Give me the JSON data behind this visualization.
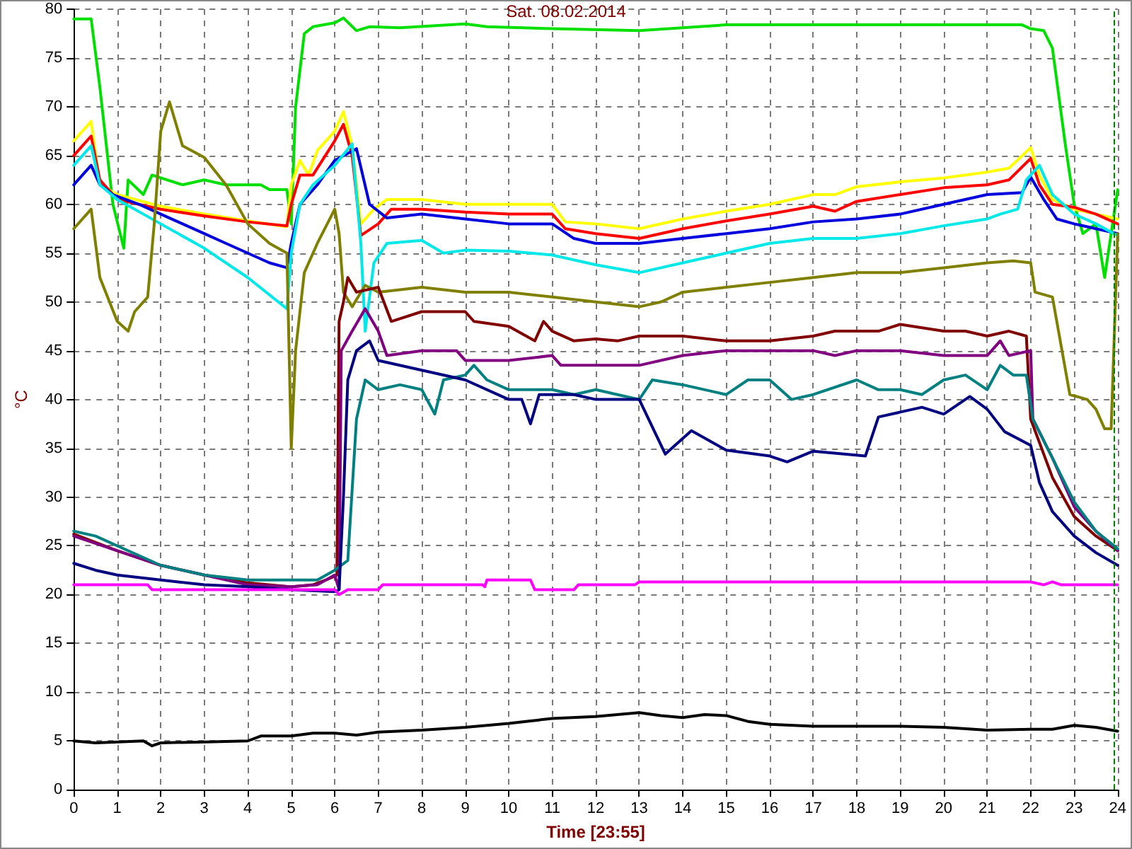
{
  "chart_data": {
    "type": "line",
    "title": "Sat. 08.02.2014",
    "xlabel": "Time [23:55]",
    "ylabel": "°C",
    "xlim": [
      0,
      24
    ],
    "xticks": [
      0,
      1,
      2,
      3,
      4,
      5,
      6,
      7,
      8,
      9,
      10,
      11,
      12,
      13,
      14,
      15,
      16,
      17,
      18,
      19,
      20,
      21,
      22,
      23,
      24
    ],
    "ylim": [
      0,
      80
    ],
    "yticks": [
      0,
      5,
      10,
      15,
      20,
      25,
      30,
      35,
      40,
      45,
      50,
      55,
      60,
      65,
      70,
      75,
      80
    ],
    "grid": true,
    "marker": "none",
    "line_style": "solid",
    "ref_lines": [
      {
        "axis": "x",
        "value": 23.92,
        "color": "#008000",
        "line_style": "dashed"
      }
    ],
    "series": [
      {
        "color": "#00e000",
        "x": [
          0,
          0.4,
          0.6,
          0.9,
          1.15,
          1.25,
          1.6,
          1.8,
          2.5,
          3,
          3.5,
          4.3,
          4.5,
          4.9,
          5.0,
          5.1,
          5.3,
          5.5,
          6.0,
          6.2,
          6.5,
          6.8,
          7.5,
          9,
          9.5,
          11,
          13,
          15,
          17,
          19,
          21,
          21.8,
          22.0,
          22.3,
          22.5,
          22.8,
          23.0,
          23.2,
          23.5,
          23.7,
          24
        ],
        "values": [
          79,
          79,
          72,
          60,
          55.5,
          62.5,
          61,
          63,
          62,
          62.5,
          62,
          62,
          61.5,
          61.5,
          58,
          70,
          77.5,
          78.2,
          78.6,
          79.1,
          77.8,
          78.2,
          78.1,
          78.5,
          78.2,
          78,
          77.8,
          78.4,
          78.4,
          78.4,
          78.4,
          78.4,
          78,
          77.8,
          76,
          66,
          60,
          57,
          58,
          52.5,
          61.5
        ]
      },
      {
        "color": "#ffff00",
        "x": [
          0,
          0.4,
          0.6,
          1,
          2,
          3,
          4,
          4.9,
          5.0,
          5.2,
          5.4,
          5.6,
          6,
          6.2,
          6.4,
          6.6,
          6.9,
          7.2,
          8,
          9,
          10,
          11,
          11.3,
          12,
          13,
          14,
          15,
          16,
          17,
          17.5,
          18,
          19,
          20,
          21,
          21.5,
          22,
          22.2,
          22.5,
          23,
          23.5,
          24
        ],
        "values": [
          66.5,
          68.5,
          62,
          61,
          59.8,
          59,
          58.3,
          57.7,
          62,
          64.5,
          63,
          65.5,
          67.5,
          69.5,
          66,
          58,
          59.5,
          60.5,
          60.5,
          60,
          60,
          60,
          58.2,
          58,
          57.5,
          58.5,
          59.3,
          60,
          61,
          61,
          61.8,
          62.3,
          62.7,
          63.3,
          63.7,
          65.8,
          63,
          60.5,
          59.5,
          59,
          58.5
        ]
      },
      {
        "color": "#ff0000",
        "x": [
          0,
          0.4,
          0.6,
          1,
          2,
          3,
          4,
          4.9,
          5.0,
          5.2,
          5.5,
          6,
          6.2,
          6.4,
          6.6,
          7,
          7.3,
          8,
          9,
          10,
          11,
          11.3,
          12,
          13,
          14,
          15,
          16,
          17,
          17.5,
          18,
          19,
          20,
          21,
          21.5,
          22,
          22.2,
          22.5,
          23,
          23.5,
          24
        ],
        "values": [
          65,
          67,
          62.5,
          60.5,
          59.5,
          58.8,
          58.2,
          57.8,
          60,
          63,
          63,
          66.5,
          68.2,
          65,
          56.8,
          58,
          59.5,
          59.5,
          59.2,
          59,
          59,
          57.5,
          57,
          56.5,
          57.5,
          58.3,
          59,
          59.8,
          59.3,
          60.3,
          61,
          61.7,
          62,
          62.5,
          64.7,
          62,
          60,
          59.7,
          59,
          58
        ]
      },
      {
        "color": "#0000dd",
        "x": [
          0,
          0.4,
          0.6,
          0.9,
          1.5,
          2,
          2.5,
          3,
          3.5,
          4,
          4.5,
          4.9,
          5.0,
          5.2,
          5.6,
          6.0,
          6.5,
          6.8,
          7.2,
          8,
          9,
          10,
          11,
          11.5,
          12,
          13,
          14,
          15,
          16,
          17,
          18,
          19,
          20,
          21,
          21.8,
          22,
          22.3,
          22.6,
          23,
          23.5,
          24
        ],
        "values": [
          62,
          64,
          62,
          61,
          60,
          59,
          58,
          57,
          56,
          55,
          54,
          53.5,
          56,
          60,
          62,
          64.5,
          65.7,
          60,
          58.6,
          59,
          58.5,
          58,
          58,
          56.5,
          56,
          56,
          56.5,
          57,
          57.5,
          58.2,
          58.5,
          59,
          60,
          61,
          61.2,
          62.8,
          60.5,
          58.5,
          58,
          57.5,
          57
        ]
      },
      {
        "color": "#00e8e8",
        "x": [
          0,
          0.4,
          0.6,
          1,
          2,
          3,
          4,
          4.9,
          5.0,
          5.2,
          5.5,
          6.0,
          6.4,
          6.6,
          6.7,
          6.9,
          7.2,
          8,
          8.5,
          9,
          10,
          11,
          12,
          13,
          14,
          15,
          16,
          17,
          18,
          19,
          20,
          21,
          21.3,
          21.7,
          21.9,
          22.2,
          22.5,
          23,
          23.5,
          24
        ],
        "values": [
          64,
          66,
          62,
          60.5,
          58,
          55.5,
          52.5,
          49.3,
          55,
          60,
          62,
          64,
          66.2,
          56,
          47,
          54,
          56,
          56.3,
          55,
          55.3,
          55.2,
          54.8,
          53.8,
          53,
          54,
          55,
          56,
          56.5,
          56.5,
          57,
          57.8,
          58.5,
          59,
          59.5,
          62.5,
          64,
          61,
          59,
          58,
          56.8
        ]
      },
      {
        "color": "#808000",
        "x": [
          0,
          0.4,
          0.6,
          1,
          1.25,
          1.4,
          1.7,
          1.85,
          2.0,
          2.2,
          2.5,
          3,
          3.5,
          4,
          4.5,
          4.9,
          5.0,
          5.1,
          5.3,
          5.6,
          6.0,
          6.1,
          6.2,
          6.4,
          6.7,
          7,
          8,
          9,
          10,
          11,
          12,
          13,
          13.5,
          14,
          15,
          16,
          17,
          18,
          19,
          20,
          21,
          21.6,
          22.0,
          22.1,
          22.5,
          22.9,
          23.3,
          23.5,
          23.7,
          23.85,
          24
        ],
        "values": [
          57.5,
          59.5,
          52.5,
          48,
          47,
          49,
          50.5,
          58,
          67.5,
          70.5,
          66,
          64.8,
          62,
          58,
          56,
          55,
          35,
          45,
          53,
          56,
          59.5,
          57,
          51,
          49.5,
          51.7,
          51,
          51.5,
          51,
          51,
          50.5,
          50,
          49.5,
          50,
          51,
          51.5,
          52,
          52.5,
          53,
          53,
          53.5,
          54,
          54.2,
          54,
          51,
          50.5,
          40.5,
          40,
          39,
          37,
          37,
          57
        ]
      },
      {
        "color": "#800000",
        "x": [
          0,
          1,
          2,
          3,
          4,
          5,
          5.5,
          5.8,
          6.05,
          6.1,
          6.2,
          6.3,
          6.5,
          7,
          7.3,
          8,
          9,
          9.2,
          10,
          10.6,
          10.8,
          11,
          11.5,
          12,
          12.5,
          13,
          14,
          15,
          16,
          17,
          17.5,
          18,
          18.5,
          19,
          20,
          20.5,
          21,
          21.5,
          21.9,
          22.0,
          22.5,
          23,
          23.5,
          24
        ],
        "values": [
          26.2,
          24.5,
          23,
          22,
          21.2,
          20.8,
          21,
          21.5,
          22,
          48,
          50,
          52.5,
          51,
          51.5,
          48,
          49,
          49,
          48,
          47.5,
          46,
          48,
          47,
          46,
          46.2,
          46,
          46.5,
          46.5,
          46,
          46,
          46.5,
          47,
          47,
          47,
          47.7,
          47,
          47,
          46.5,
          47,
          46.5,
          38,
          32,
          28,
          26,
          24.5
        ]
      },
      {
        "color": "#800080",
        "x": [
          0,
          1,
          2,
          3,
          4,
          5,
          5.6,
          6.0,
          6.1,
          6.15,
          6.4,
          6.7,
          7,
          7.2,
          8,
          8.8,
          9,
          10,
          11,
          11.2,
          12,
          13,
          14,
          15,
          16,
          17,
          17.5,
          18,
          19,
          20,
          21,
          21.3,
          21.5,
          22,
          22.05,
          22.5,
          23,
          23.5,
          24
        ],
        "values": [
          26,
          24.5,
          23,
          22,
          21,
          20.8,
          21,
          22,
          20.5,
          45,
          47,
          49.3,
          47,
          44.5,
          45,
          45,
          44,
          44,
          44.5,
          43.5,
          43.5,
          43.5,
          44.5,
          45,
          45,
          45,
          44.5,
          45,
          45,
          44.5,
          44.5,
          46,
          44.5,
          45,
          38,
          34,
          29,
          26.5,
          24.5
        ]
      },
      {
        "color": "#008080",
        "x": [
          0,
          0.5,
          1,
          1.5,
          2,
          3,
          4,
          5,
          5.6,
          6.0,
          6.3,
          6.5,
          6.7,
          7,
          7.5,
          8,
          8.3,
          8.5,
          9,
          9.2,
          9.5,
          10,
          11,
          11.5,
          12,
          12.5,
          13,
          13.3,
          14,
          15,
          15.5,
          16,
          16.5,
          17,
          18,
          18.5,
          19,
          19.5,
          20,
          20.5,
          21,
          21.3,
          21.6,
          21.9,
          22.05,
          22.5,
          23,
          23.5,
          24
        ],
        "values": [
          26.5,
          26,
          25,
          24,
          23,
          22,
          21.5,
          21.5,
          21.5,
          22.5,
          23.5,
          38,
          42,
          41,
          41.5,
          41,
          38.5,
          42,
          42.5,
          43.5,
          42,
          41,
          41,
          40.5,
          41,
          40.5,
          40,
          42,
          41.5,
          40.5,
          42,
          42,
          40,
          40.5,
          42,
          41,
          41,
          40.5,
          42,
          42.5,
          41,
          43.5,
          42.5,
          42.5,
          38,
          34,
          29.5,
          26.5,
          24.7
        ]
      },
      {
        "color": "#000080",
        "x": [
          0,
          0.5,
          1,
          2,
          3,
          4,
          5,
          6.0,
          6.1,
          6.2,
          6.3,
          6.5,
          6.8,
          7,
          8,
          9,
          10,
          10.3,
          10.5,
          10.7,
          11,
          11.5,
          12,
          12.5,
          13,
          13.6,
          14.2,
          15,
          16,
          16.4,
          17,
          18.2,
          18.5,
          19.5,
          20,
          20.6,
          21,
          21.4,
          22,
          22.2,
          22.5,
          23,
          23.5,
          24
        ],
        "values": [
          23.2,
          22.5,
          22,
          21.5,
          21,
          20.8,
          20.5,
          20.3,
          20.5,
          30,
          42,
          45,
          46,
          44,
          43,
          42,
          40,
          40,
          37.5,
          40.5,
          40.5,
          40.5,
          40,
          40,
          40,
          34.4,
          36.8,
          34.8,
          34.2,
          33.6,
          34.7,
          34.2,
          38.2,
          39.2,
          38.5,
          40.3,
          39,
          36.7,
          35.3,
          31.5,
          28.5,
          26,
          24.3,
          23
        ]
      },
      {
        "color": "#ff00ff",
        "x": [
          0,
          1.7,
          1.8,
          6.0,
          6.1,
          6.3,
          7.0,
          7.1,
          9.4,
          9.45,
          9.5,
          10.5,
          10.6,
          11.5,
          11.6,
          12.9,
          13.0,
          22.0,
          22.3,
          22.5,
          22.7,
          24
        ],
        "values": [
          21,
          21,
          20.5,
          20.5,
          20,
          20.5,
          20.5,
          21,
          21,
          20.8,
          21.5,
          21.5,
          20.5,
          20.5,
          21,
          21,
          21.3,
          21.3,
          21,
          21.3,
          21,
          21
        ]
      },
      {
        "color": "#000000",
        "x": [
          0,
          0.5,
          1.6,
          1.8,
          2,
          3,
          4,
          4.3,
          5,
          5.5,
          6.0,
          6.5,
          7,
          8,
          9,
          10,
          11,
          12,
          13,
          13.5,
          14,
          14.5,
          15,
          15.5,
          16,
          17,
          18,
          19,
          20,
          21,
          22,
          22.5,
          23,
          23.5,
          24
        ],
        "values": [
          5,
          4.8,
          5,
          4.5,
          4.8,
          4.9,
          5,
          5.5,
          5.5,
          5.8,
          5.8,
          5.6,
          5.9,
          6.1,
          6.4,
          6.8,
          7.3,
          7.5,
          7.9,
          7.6,
          7.4,
          7.7,
          7.6,
          7,
          6.7,
          6.5,
          6.5,
          6.5,
          6.4,
          6.1,
          6.2,
          6.2,
          6.6,
          6.4,
          6
        ]
      }
    ]
  }
}
